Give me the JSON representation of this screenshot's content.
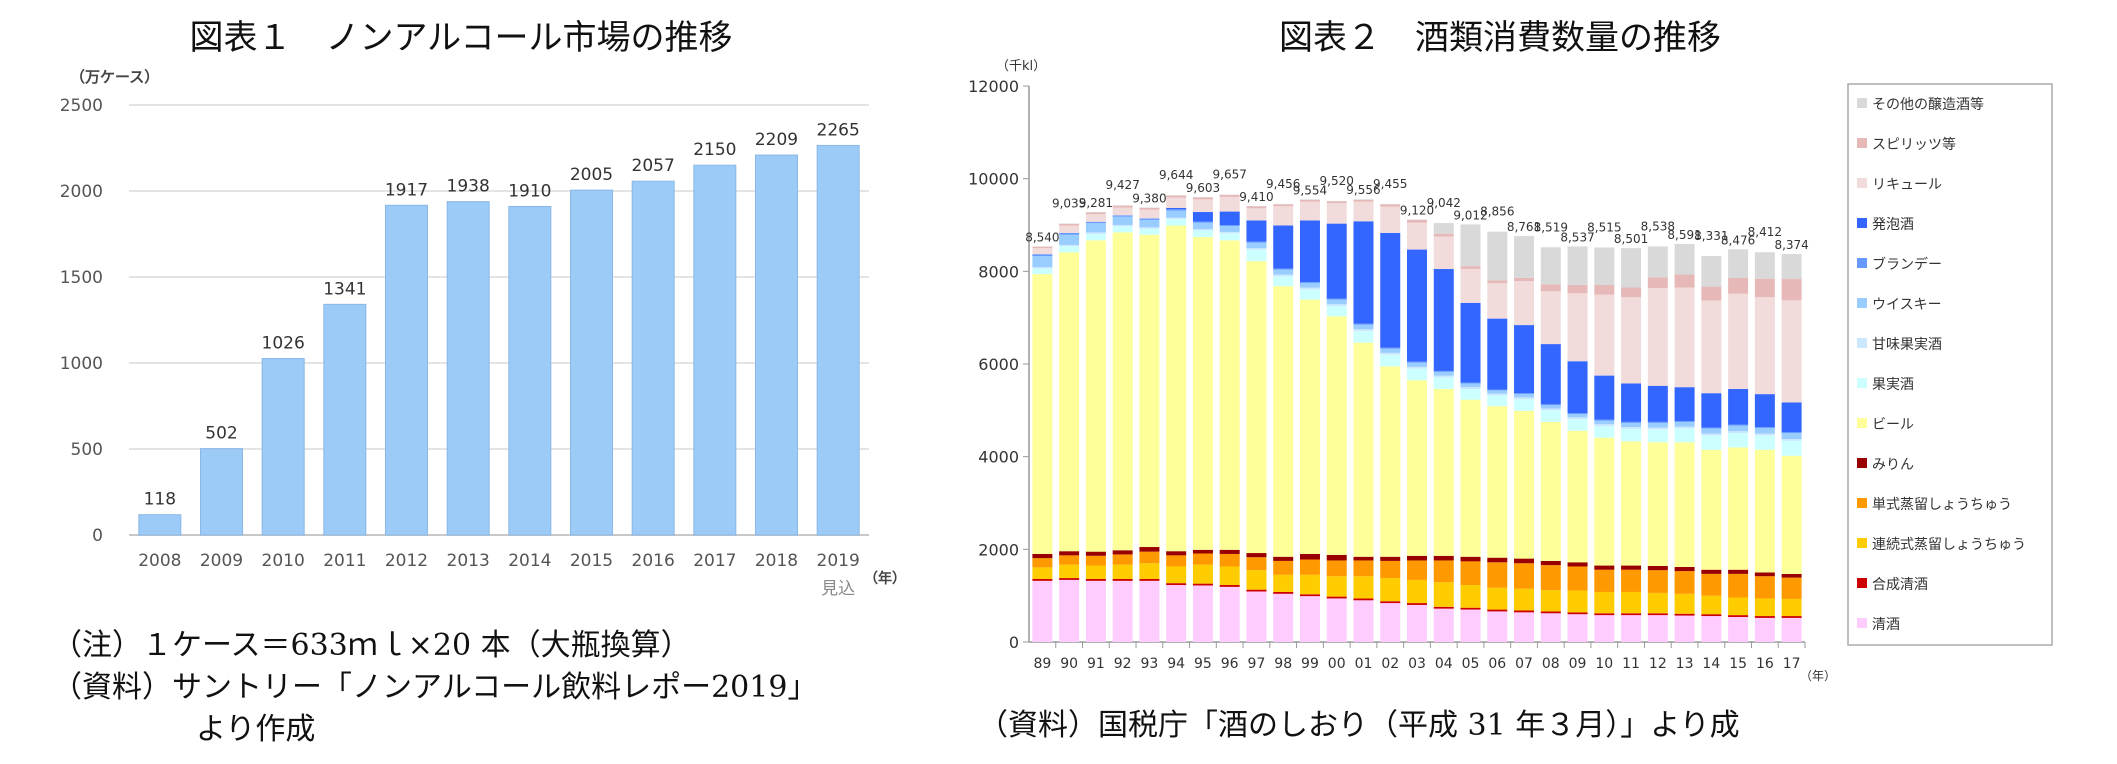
{
  "figure1": {
    "title": "図表１　ノンアルコール市場の推移",
    "note1": "（注）１ケース＝633ｍｌ×20 本（大瓶換算）",
    "note2": "（資料）サントリー「ノンアルコール飲料レポー2019」",
    "note3": "より作成"
  },
  "figure2": {
    "title": "図表２　酒類消費数量の推移",
    "caption": "（資料）国税庁「酒のしおり（平成 31 年３月）」より成"
  },
  "chart_data": [
    {
      "type": "bar",
      "ylabel": "（万ケース）",
      "xlabel": "（年）",
      "categories": [
        "2008",
        "2009",
        "2010",
        "2011",
        "2012",
        "2013",
        "2014",
        "2015",
        "2016",
        "2017",
        "2018",
        "2019"
      ],
      "category_note": {
        "2019": "見込"
      },
      "values": [
        118,
        502,
        1026,
        1341,
        1917,
        1938,
        1910,
        2005,
        2057,
        2150,
        2209,
        2265
      ],
      "data_labels": [
        "118",
        "502",
        "1026",
        "1341",
        "1917",
        "1938",
        "1910",
        "2005",
        "2057",
        "2150",
        "2209",
        "2265"
      ],
      "ylim": [
        0,
        2500
      ],
      "yticks": [
        0,
        500,
        1000,
        1500,
        2000,
        2500
      ],
      "grid": true,
      "bar_color": "#9DCBF8"
    },
    {
      "type": "stacked-bar",
      "ylabel": "（千kl）",
      "xlabel": "（年）",
      "categories": [
        "89",
        "90",
        "91",
        "92",
        "93",
        "94",
        "95",
        "96",
        "97",
        "98",
        "99",
        "00",
        "01",
        "02",
        "03",
        "04",
        "05",
        "06",
        "07",
        "08",
        "09",
        "10",
        "11",
        "12",
        "13",
        "14",
        "15",
        "16",
        "17"
      ],
      "ylim": [
        0,
        12000
      ],
      "yticks": [
        0,
        2000,
        4000,
        6000,
        8000,
        10000,
        12000
      ],
      "grid": false,
      "legend": "right",
      "totals": [
        "8,540",
        "9,035",
        "9,281",
        "9,427",
        "9,380",
        "9,644",
        "9,603",
        "9,657",
        "9,410",
        "9,456",
        "9,554",
        "9,520",
        "9,556",
        "9,455",
        "9,120",
        "9,042",
        "9,012",
        "8,856",
        "8,761",
        "8,519",
        "8,537",
        "8,515",
        "8,501",
        "8,538",
        "8,591",
        "8,331",
        "8,476",
        "8,412",
        "8,374"
      ],
      "series": [
        {
          "name": "清酒",
          "color": "#FFCCFF",
          "values": [
            1320,
            1340,
            1320,
            1320,
            1320,
            1230,
            1220,
            1190,
            1090,
            1040,
            990,
            940,
            900,
            840,
            800,
            720,
            700,
            660,
            640,
            620,
            600,
            580,
            580,
            580,
            570,
            560,
            540,
            520,
            520
          ]
        },
        {
          "name": "合成清酒",
          "color": "#CC0000",
          "values": [
            40,
            40,
            40,
            40,
            40,
            40,
            40,
            40,
            40,
            40,
            40,
            40,
            40,
            40,
            40,
            40,
            40,
            40,
            40,
            40,
            40,
            40,
            40,
            40,
            40,
            40,
            40,
            40,
            40
          ]
        },
        {
          "name": "連続式蒸留しょうちゅう",
          "color": "#FFCC00",
          "values": [
            250,
            290,
            290,
            310,
            340,
            360,
            410,
            400,
            420,
            370,
            420,
            440,
            480,
            500,
            500,
            530,
            490,
            470,
            470,
            460,
            470,
            460,
            460,
            440,
            430,
            400,
            380,
            380,
            370
          ]
        },
        {
          "name": "単式蒸留しょうちゅう",
          "color": "#FF9900",
          "values": [
            200,
            200,
            210,
            220,
            250,
            240,
            240,
            270,
            280,
            300,
            330,
            340,
            340,
            370,
            420,
            470,
            510,
            550,
            550,
            540,
            520,
            480,
            480,
            490,
            490,
            470,
            510,
            480,
            460
          ]
        },
        {
          "name": "みりん",
          "color": "#990000",
          "values": [
            90,
            90,
            90,
            90,
            100,
            90,
            80,
            90,
            90,
            90,
            120,
            120,
            80,
            90,
            100,
            100,
            100,
            100,
            100,
            90,
            90,
            90,
            90,
            90,
            90,
            90,
            90,
            80,
            80
          ]
        },
        {
          "name": "ビール",
          "color": "#FFFF99",
          "values": [
            6040,
            6450,
            6720,
            6860,
            6740,
            7030,
            6750,
            6680,
            6300,
            5840,
            5490,
            5150,
            4620,
            4110,
            3790,
            3600,
            3390,
            3270,
            3190,
            3000,
            2840,
            2760,
            2680,
            2670,
            2690,
            2590,
            2640,
            2650,
            2550
          ]
        },
        {
          "name": "果実酒",
          "color": "#CCFFFF",
          "values": [
            120,
            130,
            140,
            130,
            130,
            140,
            140,
            150,
            250,
            210,
            220,
            220,
            250,
            250,
            250,
            250,
            230,
            230,
            250,
            250,
            250,
            250,
            270,
            280,
            300,
            310,
            310,
            310,
            320
          ]
        },
        {
          "name": "甘味果実酒",
          "color": "#CCE8FF",
          "values": [
            30,
            30,
            30,
            30,
            30,
            30,
            30,
            30,
            30,
            40,
            40,
            40,
            40,
            40,
            40,
            40,
            40,
            40,
            40,
            40,
            40,
            40,
            40,
            40,
            40,
            40,
            40,
            40,
            40
          ]
        },
        {
          "name": "ウイスキー",
          "color": "#99CCFF",
          "values": [
            240,
            220,
            200,
            180,
            160,
            150,
            140,
            130,
            120,
            110,
            100,
            100,
            100,
            90,
            90,
            80,
            80,
            70,
            70,
            70,
            70,
            80,
            90,
            100,
            100,
            110,
            120,
            120,
            130
          ]
        },
        {
          "name": "ブランデー",
          "color": "#6699FF",
          "values": [
            40,
            40,
            30,
            30,
            30,
            30,
            20,
            20,
            20,
            20,
            20,
            20,
            20,
            20,
            20,
            20,
            20,
            20,
            20,
            20,
            20,
            20,
            20,
            20,
            20,
            20,
            20,
            20,
            20
          ]
        },
        {
          "name": "発泡酒",
          "color": "#3366FF",
          "values": [
            0,
            0,
            0,
            0,
            0,
            30,
            210,
            290,
            460,
            930,
            1330,
            1620,
            2210,
            2480,
            2420,
            2200,
            1720,
            1530,
            1470,
            1300,
            1120,
            950,
            830,
            780,
            730,
            740,
            770,
            710,
            640
          ]
        },
        {
          "name": "リキュール",
          "color": "#F2DCDB",
          "values": [
            130,
            155,
            161,
            167,
            190,
            224,
            273,
            317,
            260,
            416,
            404,
            440,
            426,
            565,
            580,
            702,
            732,
            766,
            951,
            1139,
            1467,
            1745,
            1861,
            2108,
            2151,
            2001,
            2056,
            2092,
            2204
          ]
        },
        {
          "name": "スピリッツ等",
          "color": "#E6B9B8",
          "values": [
            30,
            40,
            40,
            40,
            40,
            40,
            40,
            40,
            40,
            40,
            40,
            40,
            40,
            50,
            60,
            60,
            60,
            60,
            70,
            150,
            180,
            210,
            210,
            230,
            280,
            300,
            340,
            400,
            460
          ]
        },
        {
          "name": "その他の醸造酒等",
          "color": "#D9D9D9",
          "values": [
            10,
            10,
            10,
            10,
            10,
            10,
            10,
            10,
            10,
            10,
            10,
            10,
            10,
            10,
            10,
            230,
            900,
            1050,
            900,
            800,
            830,
            810,
            850,
            670,
            660,
            660,
            620,
            570,
            540
          ]
        }
      ]
    }
  ]
}
